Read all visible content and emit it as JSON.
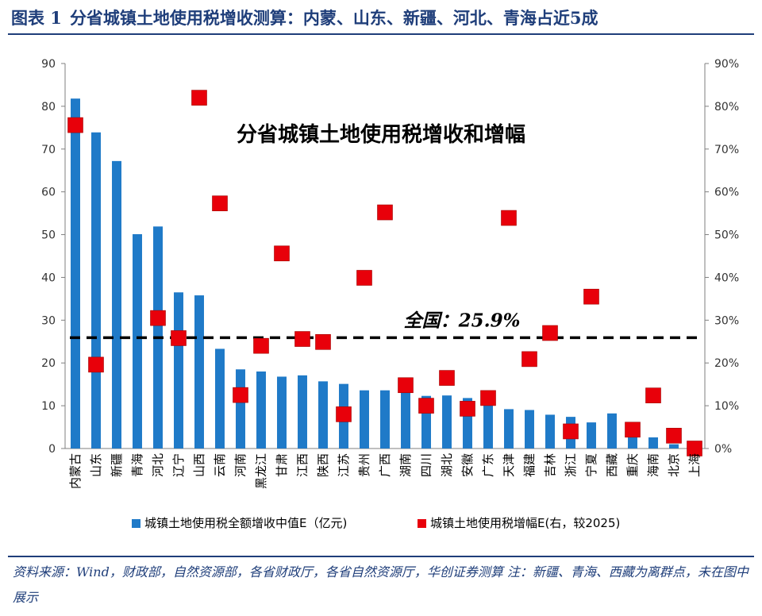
{
  "figure": {
    "label": "图表 1",
    "title": "分省城镇土地使用税增收测算：内蒙、山东、新疆、河北、青海占近5成",
    "source": "资料来源：Wind，财政部，自然资源部，各省财政厅，各省自然资源厅，华创证券测算 注：新疆、青海、西藏为离群点，未在图中展示"
  },
  "chart_data": {
    "type": "bar",
    "title": "分省城镇土地使用税增收和增幅",
    "categories": [
      "内蒙古",
      "山东",
      "新疆",
      "青海",
      "河北",
      "辽宁",
      "山西",
      "云南",
      "河南",
      "黑龙江",
      "甘肃",
      "江西",
      "陕西",
      "江苏",
      "贵州",
      "广西",
      "湖南",
      "四川",
      "湖北",
      "安徽",
      "广东",
      "天津",
      "福建",
      "吉林",
      "浙江",
      "宁夏",
      "西藏",
      "重庆",
      "海南",
      "北京",
      "上海"
    ],
    "series": [
      {
        "name": "城镇土地使用税全额增收中值E（亿元)",
        "axis": "left",
        "kind": "bar",
        "color": "#1f7ac8",
        "values": [
          81.8,
          73.9,
          67.2,
          50.1,
          51.9,
          36.5,
          35.8,
          23.3,
          18.5,
          18.0,
          16.8,
          17.1,
          15.7,
          15.1,
          13.6,
          13.6,
          13.0,
          12.3,
          12.4,
          11.8,
          11.1,
          9.2,
          9.0,
          7.9,
          7.4,
          6.1,
          8.2,
          3.2,
          2.6,
          1.0,
          0.2
        ]
      },
      {
        "name": "城镇土地使用税增幅E(右，较2025)",
        "axis": "right",
        "kind": "marker",
        "color": "#e8000a",
        "values": [
          0.756,
          0.196,
          null,
          null,
          0.305,
          0.258,
          0.82,
          0.573,
          0.125,
          0.24,
          0.456,
          0.256,
          0.249,
          0.08,
          0.399,
          0.552,
          0.148,
          0.1,
          0.165,
          0.093,
          0.118,
          0.539,
          0.209,
          0.27,
          0.04,
          0.355,
          null,
          0.044,
          0.124,
          0.03,
          0.0
        ]
      }
    ],
    "y_left": {
      "min": 0,
      "max": 90,
      "step": 10,
      "ticks": [
        "0",
        "10",
        "20",
        "30",
        "40",
        "50",
        "60",
        "70",
        "80",
        "90"
      ]
    },
    "y_right": {
      "min": 0,
      "max": 0.9,
      "step": 0.1,
      "ticks": [
        "0%",
        "10%",
        "20%",
        "30%",
        "40%",
        "50%",
        "60%",
        "70%",
        "80%",
        "90%"
      ]
    },
    "reference_line": {
      "value": 0.259,
      "axis": "right",
      "label": "全国：25.9%",
      "style": "dashed",
      "color": "#000000"
    },
    "legend_position": "bottom",
    "grid": false
  }
}
